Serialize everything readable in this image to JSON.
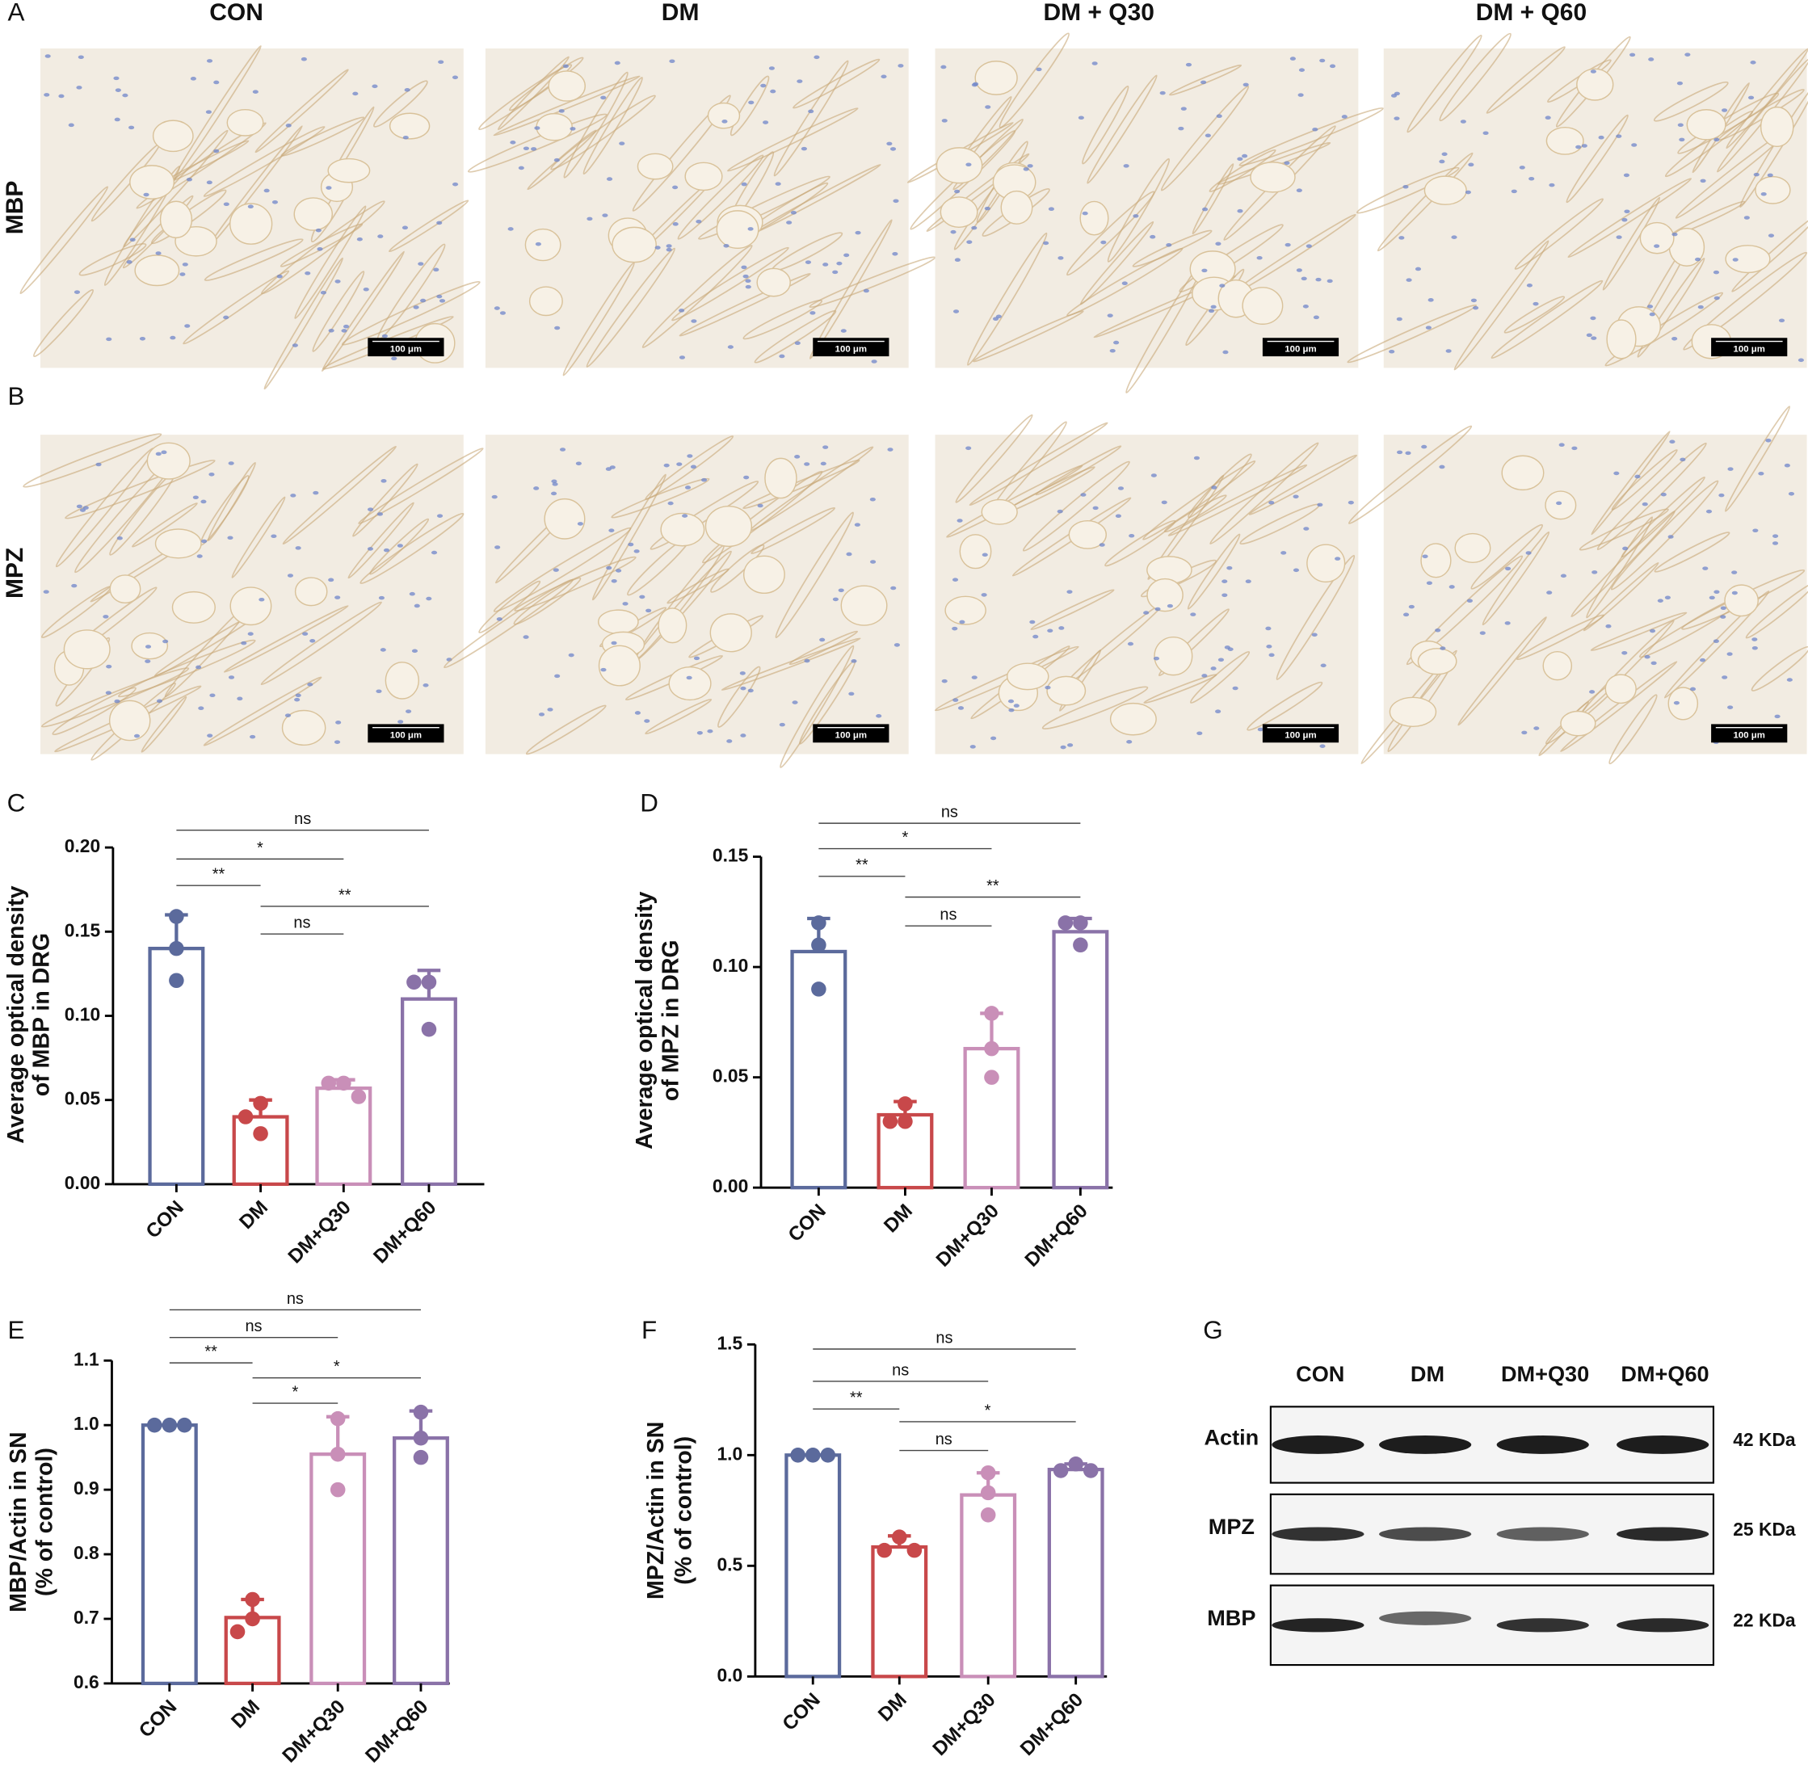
{
  "panel_labels": [
    "A",
    "B",
    "C",
    "D",
    "E",
    "F",
    "G"
  ],
  "micrographs": {
    "columns": [
      "CON",
      "DM",
      "DM + Q30",
      "DM + Q60"
    ],
    "rows": [
      "MBP",
      "MPZ"
    ],
    "scale_bar": "100 μm"
  },
  "chart_data": [
    {
      "type": "bar",
      "ylabel": [
        "Average optical density",
        "of MBP in DRG"
      ],
      "categories": [
        "CON",
        "DM",
        "DM+Q30",
        "DM+Q60"
      ],
      "colors": [
        "#5b6a9c",
        "#c8484a",
        "#c98fb8",
        "#8a72a8"
      ],
      "values": [
        0.14,
        0.04,
        0.057,
        0.11
      ],
      "errors": [
        0.02,
        0.01,
        0.005,
        0.017
      ],
      "points": [
        [
          0.159,
          0.14,
          0.121
        ],
        [
          0.048,
          0.04,
          0.03
        ],
        [
          0.06,
          0.06,
          0.052
        ],
        [
          0.12,
          0.12,
          0.092
        ]
      ],
      "ylim": [
        0,
        0.2
      ],
      "yticks": [
        {
          "value": 0,
          "label": "0.00"
        },
        {
          "value": 0.05,
          "label": "0.05"
        },
        {
          "value": 0.1,
          "label": "0.10"
        },
        {
          "value": 0.15,
          "label": "0.15"
        },
        {
          "value": 0.2,
          "label": "0.20"
        }
      ],
      "comparisons": [
        {
          "groups": [
            "CON",
            "DM+Q60"
          ],
          "label": "ns"
        },
        {
          "groups": [
            "CON",
            "DM+Q30"
          ],
          "label": "*"
        },
        {
          "groups": [
            "CON",
            "DM"
          ],
          "label": "**"
        },
        {
          "groups": [
            "DM",
            "DM+Q60"
          ],
          "label": "**"
        },
        {
          "groups": [
            "DM",
            "DM+Q30"
          ],
          "label": "ns"
        }
      ]
    },
    {
      "type": "bar",
      "ylabel": [
        "Average optical density",
        "of MPZ in DRG"
      ],
      "categories": [
        "CON",
        "DM",
        "DM+Q30",
        "DM+Q60"
      ],
      "colors": [
        "#5b6a9c",
        "#c8484a",
        "#c98fb8",
        "#8a72a8"
      ],
      "values": [
        0.107,
        0.033,
        0.063,
        0.116
      ],
      "errors": [
        0.015,
        0.006,
        0.016,
        0.006
      ],
      "points": [
        [
          0.12,
          0.11,
          0.09
        ],
        [
          0.038,
          0.03,
          0.03
        ],
        [
          0.079,
          0.063,
          0.05
        ],
        [
          0.12,
          0.12,
          0.11
        ]
      ],
      "ylim": [
        0,
        0.15
      ],
      "yticks": [
        {
          "value": 0,
          "label": "0.00"
        },
        {
          "value": 0.05,
          "label": "0.05"
        },
        {
          "value": 0.1,
          "label": "0.10"
        },
        {
          "value": 0.15,
          "label": "0.15"
        }
      ],
      "comparisons": [
        {
          "groups": [
            "CON",
            "DM+Q60"
          ],
          "label": "ns"
        },
        {
          "groups": [
            "CON",
            "DM+Q30"
          ],
          "label": "*"
        },
        {
          "groups": [
            "CON",
            "DM"
          ],
          "label": "**"
        },
        {
          "groups": [
            "DM",
            "DM+Q60"
          ],
          "label": "**"
        },
        {
          "groups": [
            "DM",
            "DM+Q30"
          ],
          "label": "ns"
        }
      ]
    },
    {
      "type": "bar",
      "ylabel": [
        "MBP/Actin in SN",
        "(% of control)"
      ],
      "categories": [
        "CON",
        "DM",
        "DM+Q30",
        "DM+Q60"
      ],
      "colors": [
        "#5b6a9c",
        "#c8484a",
        "#c98fb8",
        "#8a72a8"
      ],
      "values": [
        1,
        0.702,
        0.955,
        0.98
      ],
      "errors": [
        0,
        0.028,
        0.058,
        0.042
      ],
      "points": [
        [
          1,
          1,
          1
        ],
        [
          0.73,
          0.7,
          0.68
        ],
        [
          1.01,
          0.955,
          0.9
        ],
        [
          1.02,
          0.98,
          0.95
        ]
      ],
      "ylim": [
        0.6,
        1.1
      ],
      "yticks": [
        0.6,
        0.7,
        0.8,
        0.9,
        {
          "value": 1,
          "label": "1.0"
        },
        1.1
      ],
      "comparisons": [
        {
          "groups": [
            "CON",
            "DM+Q60"
          ],
          "label": "ns"
        },
        {
          "groups": [
            "CON",
            "DM+Q30"
          ],
          "label": "ns"
        },
        {
          "groups": [
            "CON",
            "DM"
          ],
          "label": "**"
        },
        {
          "groups": [
            "DM",
            "DM+Q60"
          ],
          "label": "*"
        },
        {
          "groups": [
            "DM",
            "DM+Q30"
          ],
          "label": "*"
        }
      ]
    },
    {
      "type": "bar",
      "ylabel": [
        "MPZ/Actin in SN",
        "(% of control)"
      ],
      "categories": [
        "CON",
        "DM",
        "DM+Q30",
        "DM+Q60"
      ],
      "colors": [
        "#5b6a9c",
        "#c8484a",
        "#c98fb8",
        "#8a72a8"
      ],
      "values": [
        1,
        0.585,
        0.82,
        0.935
      ],
      "errors": [
        0,
        0.05,
        0.1,
        0.025
      ],
      "points": [
        [
          1,
          1,
          1
        ],
        [
          0.63,
          0.57,
          0.57
        ],
        [
          0.92,
          0.83,
          0.73
        ],
        [
          0.96,
          0.93,
          0.93
        ]
      ],
      "ylim": [
        0,
        1.5
      ],
      "yticks": [
        {
          "value": 0,
          "label": "0.0"
        },
        0.5,
        {
          "value": 1,
          "label": "1.0"
        },
        1.5
      ],
      "comparisons": [
        {
          "groups": [
            "CON",
            "DM+Q60"
          ],
          "label": "ns"
        },
        {
          "groups": [
            "CON",
            "DM+Q30"
          ],
          "label": "ns"
        },
        {
          "groups": [
            "CON",
            "DM"
          ],
          "label": "**"
        },
        {
          "groups": [
            "DM",
            "DM+Q60"
          ],
          "label": "*"
        },
        {
          "groups": [
            "DM",
            "DM+Q30"
          ],
          "label": "ns"
        }
      ]
    }
  ],
  "western_blot": {
    "lanes": [
      "CON",
      "DM",
      "DM+Q30",
      "DM+Q60"
    ],
    "rows": [
      {
        "protein": "Actin",
        "size": "42 KDa"
      },
      {
        "protein": "MPZ",
        "size": "25 KDa"
      },
      {
        "protein": "MBP",
        "size": "22 KDa"
      }
    ]
  }
}
